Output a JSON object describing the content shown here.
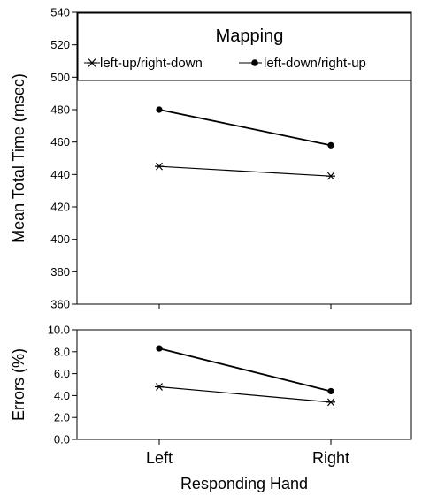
{
  "chart_data": [
    {
      "type": "line",
      "categories": [
        "Left",
        "Right"
      ],
      "ylabel": "Mean Total Time (msec)",
      "ylim": [
        360,
        540
      ],
      "yticks": [
        "360",
        "380",
        "400",
        "420",
        "440",
        "460",
        "480",
        "500",
        "520",
        "540"
      ],
      "legend": {
        "title": "Mapping",
        "placement": "top"
      },
      "series": [
        {
          "name": "left-up/right-down",
          "marker": "asterisk",
          "values": [
            445,
            439
          ]
        },
        {
          "name": "left-down/right-up",
          "marker": "filled-circle",
          "values": [
            480,
            458
          ]
        }
      ]
    },
    {
      "type": "line",
      "categories": [
        "Left",
        "Right"
      ],
      "xlabel": "Responding Hand",
      "ylabel": "Errors (%)",
      "ylim": [
        0,
        10
      ],
      "yticks": [
        "0.0",
        "2.0",
        "4.0",
        "6.0",
        "8.0",
        "10.0"
      ],
      "series": [
        {
          "name": "left-up/right-down",
          "marker": "asterisk",
          "values": [
            4.8,
            3.4
          ]
        },
        {
          "name": "left-down/right-up",
          "marker": "filled-circle",
          "values": [
            8.3,
            4.4
          ]
        }
      ]
    }
  ]
}
